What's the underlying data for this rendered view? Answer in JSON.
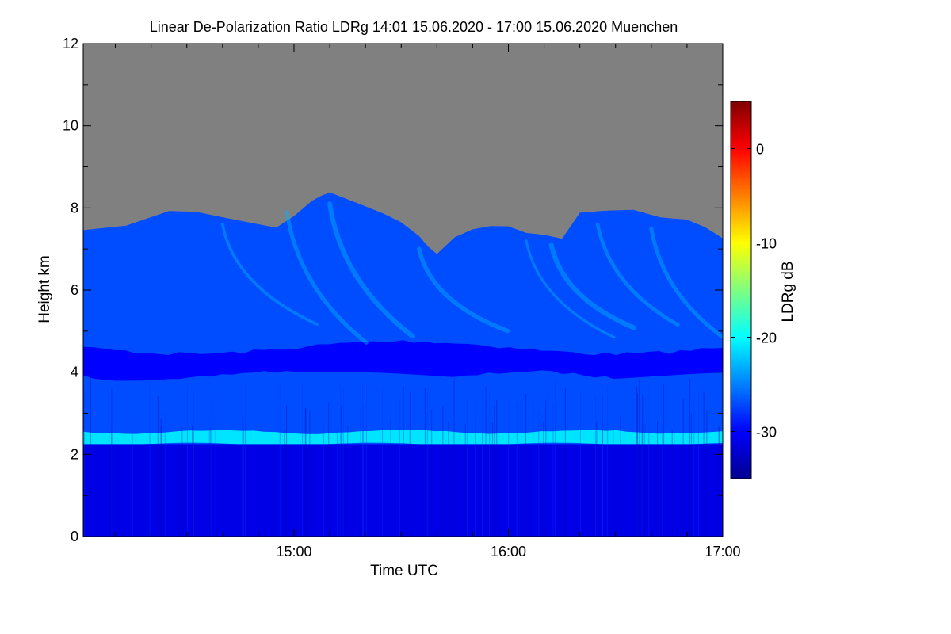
{
  "chart_data": {
    "type": "heatmap",
    "title": "Linear De-Polarization Ratio LDRg   14:01 15.06.2020 - 17:00 15.06.2020 Muenchen",
    "xlabel": "Time UTC",
    "ylabel": "Height km",
    "colorbar_label": "LDRg dB",
    "x_range_utc": [
      "14:01",
      "17:00"
    ],
    "x_ticks": [
      "15:00",
      "16:00",
      "17:00"
    ],
    "ylim": [
      0,
      12
    ],
    "y_ticks": [
      "0",
      "2",
      "4",
      "6",
      "8",
      "10",
      "12"
    ],
    "color_range_db": [
      -35,
      5
    ],
    "colorbar_ticks": [
      "0",
      "-10",
      "-20",
      "-30"
    ],
    "colormap": "jet",
    "no_data_color": "#808080",
    "layers": [
      {
        "name": "lower layer",
        "height_km": [
          0,
          2.25
        ],
        "ldr_db": -31
      },
      {
        "name": "bright band",
        "height_km": [
          2.25,
          2.55
        ],
        "ldr_db": -21
      },
      {
        "name": "mid layer",
        "height_km": [
          2.55,
          3.9
        ],
        "ldr_db": -27
      },
      {
        "name": "dark band",
        "height_km": [
          3.9,
          4.6
        ],
        "ldr_db": -30
      },
      {
        "name": "upper cloud",
        "height_km": [
          4.6,
          8.5
        ],
        "ldr_db": -27
      }
    ],
    "cloud_top_km": {
      "time_utc": [
        "14:01",
        "14:25",
        "14:40",
        "14:55",
        "15:05",
        "15:10",
        "15:25",
        "15:35",
        "15:40",
        "15:50",
        "16:00",
        "16:10",
        "16:15",
        "16:20",
        "16:35",
        "16:50",
        "17:00"
      ],
      "height_km": [
        7.4,
        7.9,
        7.8,
        7.5,
        8.2,
        8.4,
        7.9,
        7.3,
        6.9,
        7.5,
        7.6,
        7.3,
        7.3,
        7.9,
        8.0,
        7.7,
        7.3
      ]
    }
  }
}
